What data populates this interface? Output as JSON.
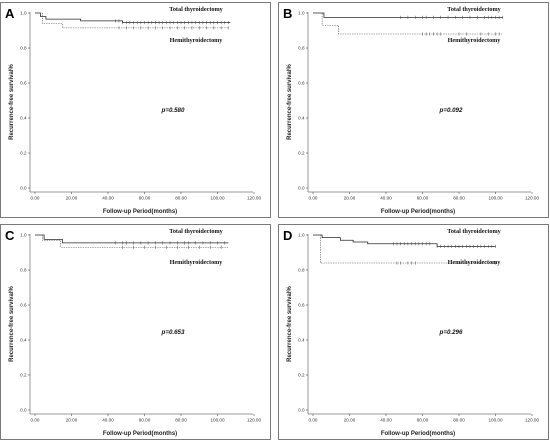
{
  "chart_data": [
    {
      "type": "line",
      "panel": "A",
      "ylabel": "Recurrence-free survival%",
      "xlabel": "Follow-up Period(months)",
      "xlim": [
        0,
        120
      ],
      "ylim": [
        0,
        1.0
      ],
      "x_ticks": [
        "0.00",
        "20.00",
        "40.00",
        "60.00",
        "80.00",
        "100.00",
        "120.00"
      ],
      "y_ticks": [
        "0.0",
        "0.2",
        "0.4",
        "0.6",
        "0.8",
        "1.0"
      ],
      "annotation": "p=0.580",
      "series": [
        {
          "name": "Total thyroidectomy",
          "style": "solid",
          "steps": [
            [
              0,
              1.0
            ],
            [
              3,
              0.98
            ],
            [
              6,
              0.965
            ],
            [
              25,
              0.955
            ],
            [
              48,
              0.945
            ],
            [
              107,
              0.945
            ]
          ],
          "censored": [
            44,
            46,
            48,
            50,
            52,
            54,
            56,
            58,
            60,
            62,
            64,
            66,
            68,
            70,
            72,
            74,
            76,
            78,
            80,
            82,
            84,
            86,
            88,
            90,
            92,
            94,
            96,
            98,
            100,
            102,
            104,
            106
          ]
        },
        {
          "name": "Hemithyroidectomy",
          "style": "dashed",
          "steps": [
            [
              0,
              1.0
            ],
            [
              4,
              0.94
            ],
            [
              15,
              0.915
            ],
            [
              106,
              0.915
            ]
          ],
          "censored": [
            46,
            50,
            54,
            58,
            62,
            66,
            70,
            74,
            78,
            82,
            86,
            90,
            94,
            98,
            102,
            106
          ]
        }
      ]
    },
    {
      "type": "line",
      "panel": "B",
      "ylabel": "Recurrence-free survival%",
      "xlabel": "Follow-up Period(months)",
      "xlim": [
        0,
        120
      ],
      "ylim": [
        0,
        1.0
      ],
      "x_ticks": [
        "0.00",
        "20.00",
        "40.00",
        "60.00",
        "80.00",
        "100.00",
        "120.00"
      ],
      "y_ticks": [
        "0.0",
        "0.2",
        "0.4",
        "0.6",
        "0.8",
        "1.0"
      ],
      "annotation": "p=0.092",
      "series": [
        {
          "name": "Total thyroidectomy",
          "style": "solid",
          "steps": [
            [
              0,
              1.0
            ],
            [
              6,
              0.975
            ],
            [
              104,
              0.975
            ]
          ],
          "censored": [
            48,
            52,
            56,
            60,
            62,
            66,
            70,
            74,
            78,
            82,
            86,
            90,
            94,
            96,
            98,
            100,
            102,
            104
          ]
        },
        {
          "name": "Hemithyroidectomy",
          "style": "dashed",
          "steps": [
            [
              0,
              1.0
            ],
            [
              5,
              0.93
            ],
            [
              14,
              0.88
            ],
            [
              104,
              0.88
            ]
          ],
          "censored": [
            60,
            62,
            64,
            66,
            68,
            70,
            80,
            84,
            92,
            96,
            100,
            102
          ]
        }
      ]
    },
    {
      "type": "line",
      "panel": "C",
      "ylabel": "Recurrence-free survival%",
      "xlabel": "Follow-up Period(months)",
      "xlim": [
        0,
        120
      ],
      "ylim": [
        0,
        1.0
      ],
      "x_ticks": [
        "0.00",
        "20.00",
        "40.00",
        "60.00",
        "80.00",
        "100.00",
        "120.00"
      ],
      "y_ticks": [
        "0.0",
        "0.2",
        "0.4",
        "0.6",
        "0.8",
        "1.0"
      ],
      "annotation": "p=0.653",
      "series": [
        {
          "name": "Total thyroidectomy",
          "style": "solid",
          "steps": [
            [
              0,
              1.0
            ],
            [
              5,
              0.975
            ],
            [
              15,
              0.955
            ],
            [
              106,
              0.955
            ]
          ],
          "censored": [
            44,
            48,
            50,
            54,
            58,
            62,
            66,
            70,
            74,
            78,
            82,
            84,
            88,
            92,
            96,
            100,
            104
          ]
        },
        {
          "name": "Hemithyroidectomy",
          "style": "dashed",
          "steps": [
            [
              0,
              1.0
            ],
            [
              4,
              0.97
            ],
            [
              14,
              0.93
            ],
            [
              106,
              0.93
            ]
          ],
          "censored": [
            48,
            54,
            60,
            66,
            72,
            78,
            84,
            90,
            96,
            102
          ]
        }
      ]
    },
    {
      "type": "line",
      "panel": "D",
      "ylabel": "Recurrence-free survival%",
      "xlabel": "Follow-up Period(months)",
      "xlim": [
        0,
        120
      ],
      "ylim": [
        0,
        1.0
      ],
      "x_ticks": [
        "0.00",
        "20.00",
        "40.00",
        "60.00",
        "80.00",
        "100.00",
        "120.00"
      ],
      "y_ticks": [
        "0.0",
        "0.2",
        "0.4",
        "0.6",
        "0.8",
        "1.0"
      ],
      "annotation": "p=0.296",
      "series": [
        {
          "name": "Total thyroidectomy",
          "style": "solid",
          "steps": [
            [
              0,
              1.0
            ],
            [
              5,
              0.985
            ],
            [
              15,
              0.97
            ],
            [
              22,
              0.96
            ],
            [
              30,
              0.95
            ],
            [
              68,
              0.935
            ],
            [
              100,
              0.935
            ]
          ],
          "censored": [
            44,
            46,
            48,
            50,
            52,
            54,
            56,
            58,
            60,
            62,
            64,
            68,
            70,
            72,
            74,
            76,
            78,
            80,
            82,
            84,
            86,
            88,
            90,
            92,
            94,
            96,
            98,
            100
          ]
        },
        {
          "name": "Hemithyroidectomy",
          "style": "dashed",
          "steps": [
            [
              0,
              1.0
            ],
            [
              4,
              0.84
            ],
            [
              100,
              0.84
            ]
          ],
          "censored": [
            46,
            48,
            52,
            54,
            56,
            100
          ]
        }
      ]
    }
  ]
}
